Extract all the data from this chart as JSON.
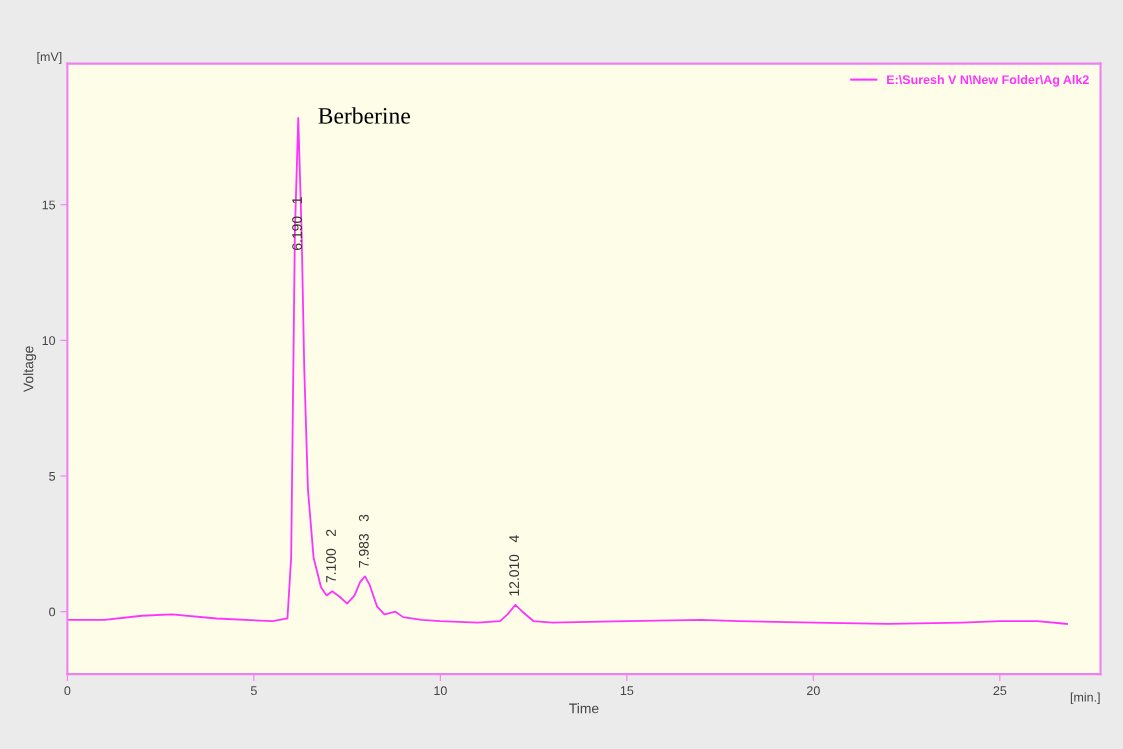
{
  "chart_data": {
    "type": "line",
    "xlabel": "Time",
    "ylabel": "Voltage",
    "xlim": [
      0,
      27.7
    ],
    "ylim": [
      -2.3,
      20.2
    ],
    "xticks": [
      0,
      5,
      10,
      15,
      20,
      25
    ],
    "yticks": [
      0,
      5,
      10,
      15
    ],
    "grid": false,
    "legend": "top right",
    "marker": "none",
    "line_style": "solid",
    "series": [
      {
        "name": "E:\\Suresh V N\\New Folder\\Ag Alk2",
        "color": "#ff33ff",
        "x": [
          0,
          1,
          2,
          2.8,
          4,
          5.5,
          5.9,
          6.0,
          6.05,
          6.1,
          6.19,
          6.28,
          6.35,
          6.45,
          6.6,
          6.8,
          6.95,
          7.1,
          7.3,
          7.5,
          7.7,
          7.85,
          7.98,
          8.1,
          8.3,
          8.5,
          8.8,
          9.0,
          9.5,
          10,
          11,
          11.6,
          11.8,
          12.01,
          12.2,
          12.5,
          13,
          15,
          17,
          18,
          20,
          22,
          24,
          25,
          26,
          26.8
        ],
        "values": [
          -0.3,
          -0.3,
          -0.15,
          -0.1,
          -0.25,
          -0.35,
          -0.25,
          2,
          8,
          14,
          18.2,
          14,
          9,
          4.5,
          2,
          0.9,
          0.6,
          0.75,
          0.55,
          0.3,
          0.6,
          1.1,
          1.3,
          1.0,
          0.2,
          -0.1,
          0.0,
          -0.2,
          -0.3,
          -0.35,
          -0.4,
          -0.35,
          -0.1,
          0.25,
          0.0,
          -0.35,
          -0.4,
          -0.35,
          -0.3,
          -0.35,
          -0.4,
          -0.45,
          -0.4,
          -0.35,
          -0.35,
          -0.45
        ]
      }
    ],
    "annotations": [
      {
        "text": "Berberine",
        "x": 6.19,
        "y": 18.2
      },
      {
        "text": "6.190   1",
        "x": 6.19,
        "y": 13.0
      },
      {
        "text": "7.100   2",
        "x": 7.1,
        "y": 0.75
      },
      {
        "text": "7.983   3",
        "x": 7.98,
        "y": 1.3
      },
      {
        "text": "12.010   4",
        "x": 12.01,
        "y": 0.25
      },
      "[mV]",
      "[min.]"
    ]
  }
}
